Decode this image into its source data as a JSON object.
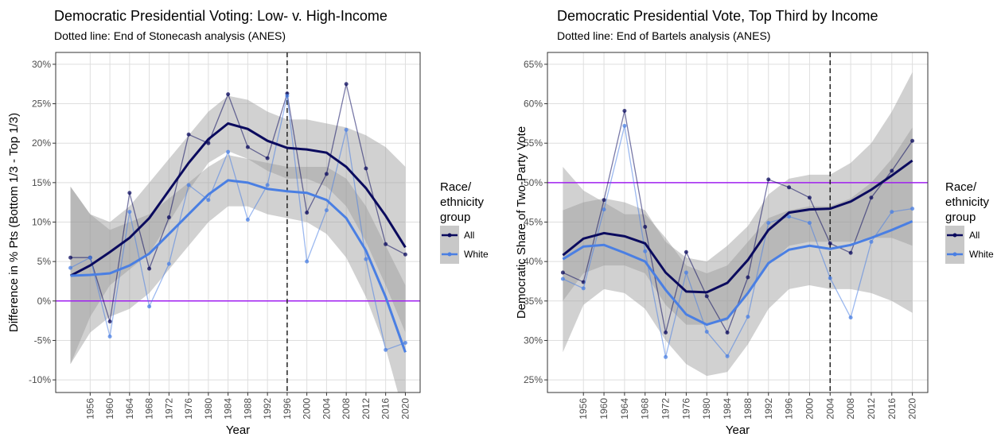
{
  "chart_data": [
    {
      "type": "line",
      "title": "Democratic Presidential Voting: Low- v. High-Income",
      "subtitle": "Dotted line: End of Stonecash analysis (ANES)",
      "x_label": "Year",
      "y_label": "Difference in % Pts (Bottom 1/3 - Top 1/3)",
      "legend_title": [
        "Race/",
        "ethnicity",
        "group"
      ],
      "x": [
        1952,
        1956,
        1960,
        1964,
        1968,
        1972,
        1976,
        1980,
        1984,
        1988,
        1992,
        1996,
        2000,
        2004,
        2008,
        2012,
        2016,
        2020
      ],
      "xlim": [
        1949,
        2023
      ],
      "xticks": [
        1956,
        1960,
        1964,
        1968,
        1972,
        1976,
        1980,
        1984,
        1988,
        1992,
        1996,
        2000,
        2004,
        2008,
        2012,
        2016,
        2020
      ],
      "ylim": [
        -11.6,
        31.5
      ],
      "yticks": [
        {
          "value": -10,
          "label": "-10%"
        },
        {
          "value": -5,
          "label": "-5%"
        },
        {
          "value": 0,
          "label": "0%"
        },
        {
          "value": 5,
          "label": "5%"
        },
        {
          "value": 10,
          "label": "10%"
        },
        {
          "value": 15,
          "label": "15%"
        },
        {
          "value": 20,
          "label": "20%"
        },
        {
          "value": 25,
          "label": "25%"
        },
        {
          "value": 30,
          "label": "30%"
        }
      ],
      "hline": 0,
      "hline_color": "#a020f0",
      "vline": 1996,
      "grid": true,
      "series": [
        {
          "name": "All",
          "color": "#0b0b5e",
          "values": [
            5.5,
            5.5,
            -2.6,
            13.7,
            4.1,
            10.6,
            21.1,
            20.0,
            26.2,
            19.5,
            18.1,
            26.3,
            11.2,
            16.1,
            27.5,
            16.8,
            7.2,
            5.9
          ],
          "smooth": [
            3.2,
            4.5,
            6.2,
            8.0,
            10.5,
            14.0,
            17.5,
            20.5,
            22.5,
            21.8,
            20.3,
            19.4,
            19.2,
            18.8,
            17.0,
            14.3,
            10.8,
            6.8
          ],
          "band_low": [
            -8,
            -2,
            2,
            4,
            6,
            10,
            14,
            17.5,
            19,
            18,
            16.5,
            15.5,
            15.5,
            14.5,
            12,
            7.5,
            2,
            -4
          ],
          "band_high": [
            14.5,
            11,
            10,
            12,
            15,
            18,
            21,
            24,
            26,
            25.5,
            24,
            23,
            23,
            22.5,
            22,
            21,
            19.5,
            17
          ]
        },
        {
          "name": "White",
          "color": "#4a7fe3",
          "values": [
            4.2,
            5.5,
            -4.5,
            11.3,
            -0.7,
            4.7,
            14.7,
            12.8,
            18.9,
            10.3,
            14.7,
            26.0,
            5.0,
            11.5,
            21.7,
            5.3,
            -6.2,
            -5.3
          ],
          "smooth": [
            3.2,
            3.3,
            3.5,
            4.5,
            6.0,
            8.5,
            11.0,
            13.5,
            15.3,
            15.0,
            14.2,
            13.9,
            13.7,
            12.8,
            10.5,
            6.4,
            0.5,
            -6.5
          ],
          "band_low": [
            -8,
            -4,
            -2,
            -1,
            1,
            4,
            7,
            10,
            12,
            12,
            11,
            10.5,
            10,
            8.5,
            5.5,
            0.5,
            -6,
            -15
          ],
          "band_high": [
            14.5,
            11,
            9,
            10,
            11,
            13,
            15,
            17,
            18.5,
            18,
            17.5,
            17,
            17,
            17,
            15.5,
            12,
            7,
            2
          ]
        }
      ]
    },
    {
      "type": "line",
      "title": "Democratic Presidential Vote, Top Third by Income",
      "subtitle": "Dotted line: End of Bartels analysis (ANES)",
      "x_label": "Year",
      "y_label": "Democratic Share of Two-Party Vote",
      "legend_title": [
        "Race/",
        "ethnicity",
        "group"
      ],
      "x": [
        1952,
        1956,
        1960,
        1964,
        1968,
        1972,
        1976,
        1980,
        1984,
        1988,
        1992,
        1996,
        2000,
        2004,
        2008,
        2012,
        2016,
        2020
      ],
      "xlim": [
        1949,
        2023
      ],
      "xticks": [
        1956,
        1960,
        1964,
        1968,
        1972,
        1976,
        1980,
        1984,
        1988,
        1992,
        1996,
        2000,
        2004,
        2008,
        2012,
        2016,
        2020
      ],
      "ylim": [
        23.4,
        66.5
      ],
      "yticks": [
        {
          "value": 25,
          "label": "25%"
        },
        {
          "value": 30,
          "label": "30%"
        },
        {
          "value": 35,
          "label": "35%"
        },
        {
          "value": 40,
          "label": "40%"
        },
        {
          "value": 45,
          "label": "45%"
        },
        {
          "value": 50,
          "label": "50%"
        },
        {
          "value": 55,
          "label": "55%"
        },
        {
          "value": 60,
          "label": "60%"
        },
        {
          "value": 65,
          "label": "65%"
        }
      ],
      "hline": 50,
      "hline_color": "#a020f0",
      "vline": 2004,
      "grid": true,
      "series": [
        {
          "name": "All",
          "color": "#0b0b5e",
          "values": [
            38.6,
            37.4,
            47.8,
            59.1,
            44.4,
            31.0,
            41.2,
            35.6,
            31.0,
            38.0,
            50.4,
            49.4,
            48.1,
            42.3,
            41.1,
            48.1,
            51.5,
            55.3
          ],
          "smooth": [
            40.8,
            42.9,
            43.6,
            43.2,
            42.3,
            38.6,
            36.2,
            36.1,
            37.3,
            40.2,
            44.0,
            46.2,
            46.6,
            46.7,
            47.6,
            49.1,
            50.9,
            52.8
          ],
          "band_low": [
            35,
            38.5,
            39.5,
            39.5,
            38.5,
            34.5,
            32,
            32,
            32.5,
            36,
            39.5,
            42,
            42.5,
            42.5,
            42.5,
            43,
            43,
            42
          ],
          "band_high": [
            46.5,
            47.5,
            48,
            47.5,
            46.5,
            42.5,
            40.5,
            40,
            42,
            44.5,
            48.5,
            50.5,
            51,
            51,
            52.5,
            55,
            59,
            64
          ]
        },
        {
          "name": "White",
          "color": "#4a7fe3",
          "values": [
            37.8,
            36.6,
            46.6,
            57.2,
            41.3,
            27.9,
            38.6,
            31.1,
            28.0,
            33.0,
            44.9,
            45.7,
            44.9,
            37.9,
            32.9,
            42.5,
            46.3,
            46.7
          ],
          "smooth": [
            40.3,
            41.9,
            42.1,
            41.1,
            40.0,
            36.4,
            33.3,
            32.0,
            32.8,
            36.0,
            39.8,
            41.5,
            42.0,
            41.6,
            42.1,
            43.0,
            44.0,
            45.1
          ],
          "band_low": [
            28.5,
            34.5,
            36.5,
            36,
            34,
            30,
            27,
            25.5,
            26,
            29.5,
            34,
            36.5,
            37,
            36.5,
            36.5,
            36,
            35,
            33.5
          ],
          "band_high": [
            52,
            49,
            47.5,
            46,
            46,
            43,
            39.5,
            38.5,
            39.5,
            42.5,
            45.5,
            46.5,
            47,
            47,
            48,
            50,
            53,
            57
          ]
        }
      ]
    }
  ]
}
